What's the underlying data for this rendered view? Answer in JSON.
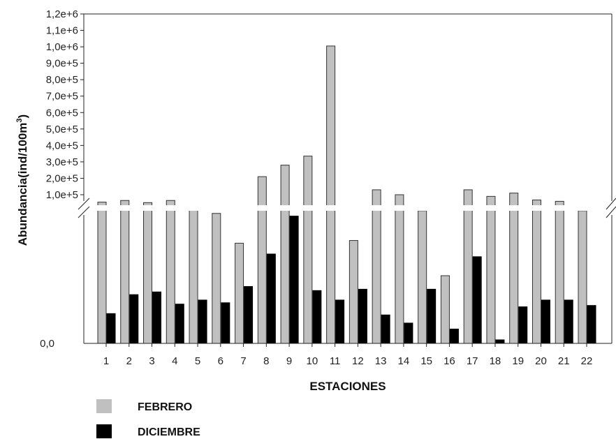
{
  "chart_data": {
    "type": "bar",
    "title": "",
    "xlabel": "ESTACIONES",
    "ylabel": "Abundancia(ind/100m",
    "ylabel_superscript": "3",
    "ylabel_suffix": ")",
    "y_tick_labels_upper": [
      "1,0e+5",
      "2,0e+5",
      "3,0e+5",
      "4,0e+5",
      "5,0e+5",
      "6,0e+5",
      "7,0e+5",
      "8,0e+5",
      "9,0e+5",
      "1,0e+6",
      "1,1e+6",
      "1,2e+6"
    ],
    "y_tick_label_zero": "0,0",
    "y_axis_broken": true,
    "lower_segment_max": 50000,
    "upper_segment_range": [
      50000,
      1200000
    ],
    "categories": [
      "1",
      "2",
      "3",
      "4",
      "5",
      "6",
      "7",
      "8",
      "9",
      "10",
      "11",
      "12",
      "13",
      "14",
      "15",
      "16",
      "17",
      "18",
      "19",
      "20",
      "21",
      "22"
    ],
    "series": [
      {
        "name": "FEBRERO",
        "color": "#c0c0c0",
        "values": [
          55000,
          65000,
          52000,
          65000,
          50000,
          48000,
          37000,
          210000,
          280000,
          335000,
          1005000,
          38000,
          130000,
          100000,
          49000,
          25000,
          130000,
          90000,
          110000,
          68000,
          60000,
          49000
        ]
      },
      {
        "name": "DICIEMBRE",
        "color": "#000000",
        "values": [
          11000,
          18000,
          19000,
          14500,
          16000,
          15000,
          21000,
          33000,
          47000,
          19500,
          16000,
          20000,
          10500,
          7500,
          20000,
          5300,
          32000,
          1300,
          13500,
          16000,
          16000,
          14000
        ]
      }
    ],
    "legend_placement": "bottom-left",
    "grid": false
  }
}
